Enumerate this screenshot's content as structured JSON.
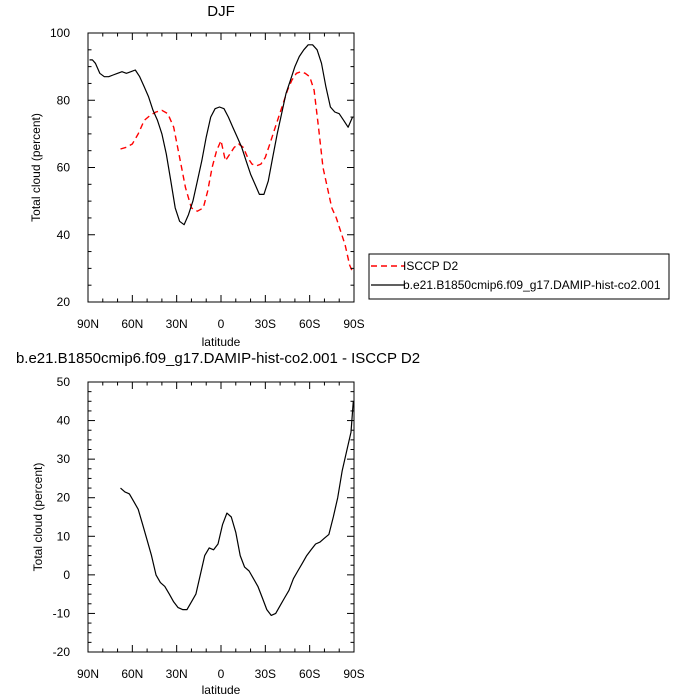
{
  "chart_data": [
    {
      "type": "line",
      "title": "DJF",
      "xlabel": "latitude",
      "ylabel": "Total cloud (percent)",
      "xlim": [
        90,
        -90
      ],
      "ylim": [
        20,
        100
      ],
      "x_ticks": [
        {
          "value": 90,
          "label": "90N"
        },
        {
          "value": 60,
          "label": "60N"
        },
        {
          "value": 30,
          "label": "30N"
        },
        {
          "value": 0,
          "label": "0"
        },
        {
          "value": -30,
          "label": "30S"
        },
        {
          "value": -60,
          "label": "60S"
        },
        {
          "value": -90,
          "label": "90S"
        }
      ],
      "y_ticks": [
        20,
        40,
        60,
        80,
        100
      ],
      "grid": false,
      "legend_position": "right",
      "series": [
        {
          "name": "ISCCP D2",
          "color": "#ff0000",
          "dash": "dashed",
          "x": [
            68,
            64,
            60,
            56,
            52,
            48,
            44,
            40,
            36,
            32,
            28,
            24,
            20,
            16,
            12,
            9,
            6,
            3,
            0,
            -3,
            -6,
            -9,
            -12,
            -15,
            -18,
            -21,
            -24,
            -27,
            -30,
            -33,
            -36,
            -39,
            -42,
            -45,
            -48,
            -51,
            -54,
            -57,
            -60,
            -63,
            -66,
            -69,
            -72,
            -75,
            -78,
            -81,
            -84,
            -87,
            -89
          ],
          "y": [
            65.5,
            66,
            67,
            70,
            74,
            75.5,
            76.5,
            77,
            76,
            72,
            63,
            54,
            48,
            47,
            48,
            53,
            60,
            65,
            68,
            62,
            64,
            66,
            67,
            66,
            63,
            61,
            60.5,
            61,
            63,
            67,
            71,
            75,
            79,
            83,
            86,
            88,
            88.5,
            88,
            87,
            83,
            72,
            60,
            54,
            48,
            45,
            41,
            37,
            31,
            29
          ]
        },
        {
          "name": "b.e21.B1850cmip6.f09_g17.DAMIP-hist-co2.001",
          "color": "#000000",
          "dash": "solid",
          "x": [
            89,
            87,
            85,
            82,
            79,
            76,
            73,
            70,
            67,
            64,
            61,
            58,
            55,
            52,
            49,
            46,
            43,
            40,
            37,
            34,
            31,
            28,
            25,
            22,
            19,
            16,
            13,
            10,
            7,
            4,
            1,
            -2,
            -5,
            -8,
            -11,
            -14,
            -17,
            -20,
            -23,
            -26,
            -29,
            -32,
            -35,
            -38,
            -41,
            -44,
            -47,
            -50,
            -53,
            -56,
            -59,
            -62,
            -65,
            -68,
            -71,
            -74,
            -77,
            -80,
            -83,
            -86,
            -89
          ],
          "y": [
            92,
            92,
            91,
            88,
            87,
            87,
            87.5,
            88,
            88.5,
            88,
            88.5,
            89,
            87,
            84,
            81,
            77,
            74,
            70,
            64,
            56,
            48,
            44,
            43,
            46,
            50,
            56,
            62,
            69,
            75,
            77.5,
            78,
            77.5,
            75,
            72,
            69,
            66,
            62,
            58,
            55,
            52,
            52,
            56,
            63,
            70,
            76,
            82,
            86,
            90,
            93,
            95,
            96.5,
            96.5,
            95,
            91,
            84,
            78,
            76.5,
            76,
            74,
            72,
            75
          ]
        }
      ]
    },
    {
      "type": "line",
      "title": "b.e21.B1850cmip6.f09_g17.DAMIP-hist-co2.001 - ISCCP D2",
      "xlabel": "latitude",
      "ylabel": "Total cloud (percent)",
      "xlim": [
        90,
        -90
      ],
      "ylim": [
        -20,
        50
      ],
      "x_ticks": [
        {
          "value": 90,
          "label": "90N"
        },
        {
          "value": 60,
          "label": "60N"
        },
        {
          "value": 30,
          "label": "30N"
        },
        {
          "value": 0,
          "label": "0"
        },
        {
          "value": -30,
          "label": "30S"
        },
        {
          "value": -60,
          "label": "60S"
        },
        {
          "value": -90,
          "label": "90S"
        }
      ],
      "y_ticks": [
        -20,
        -10,
        0,
        10,
        20,
        30,
        40,
        50
      ],
      "grid": false,
      "series": [
        {
          "color": "#000000",
          "dash": "solid",
          "x": [
            68,
            65,
            62,
            59,
            56,
            53,
            50,
            47,
            44,
            41,
            38,
            35,
            32,
            29,
            26,
            23,
            20,
            17,
            14,
            11,
            8,
            5,
            2,
            -1,
            -4,
            -7,
            -10,
            -13,
            -16,
            -19,
            -22,
            -25,
            -28,
            -31,
            -34,
            -37,
            -40,
            -43,
            -46,
            -49,
            -52,
            -55,
            -58,
            -61,
            -64,
            -67,
            -70,
            -73,
            -76,
            -79,
            -82,
            -85,
            -88,
            -89.5
          ],
          "y": [
            22.5,
            21.5,
            21,
            19,
            17,
            13,
            9,
            5,
            0,
            -2,
            -3,
            -5,
            -7,
            -8.5,
            -9,
            -9,
            -7,
            -5,
            0,
            5,
            7,
            6.5,
            8,
            13,
            16,
            15,
            11,
            5,
            2,
            1,
            -1,
            -3,
            -6,
            -9,
            -10.5,
            -10,
            -8,
            -6,
            -4,
            -1,
            1,
            3,
            5,
            6.5,
            8,
            8.5,
            9.5,
            10.5,
            15,
            20,
            27,
            32,
            37,
            45
          ]
        }
      ]
    }
  ]
}
